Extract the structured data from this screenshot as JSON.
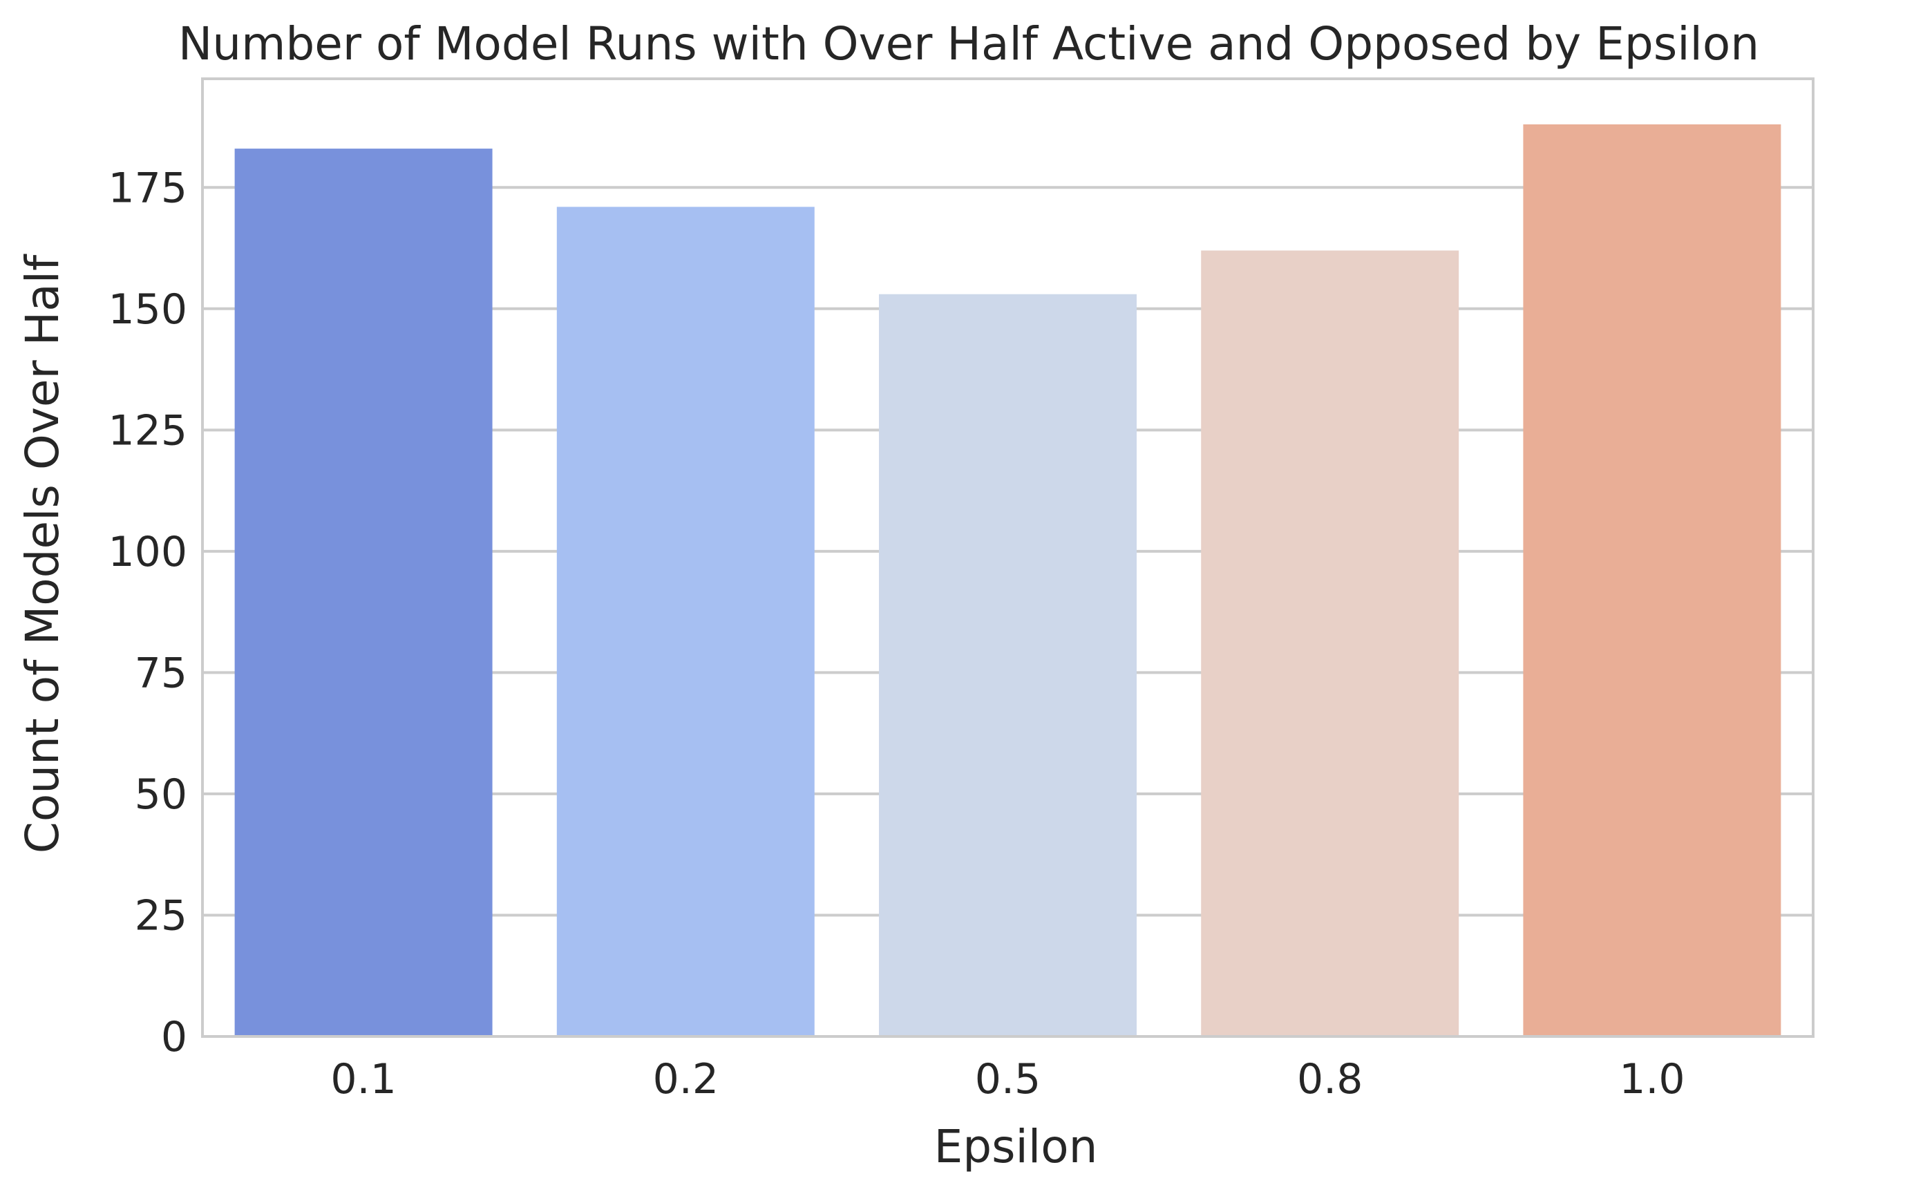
{
  "chart_data": {
    "type": "bar",
    "title": "Number of Model Runs with Over Half Active and Opposed by Epsilon",
    "xlabel": "Epsilon",
    "ylabel": "Count of Models Over Half",
    "categories": [
      "0.1",
      "0.2",
      "0.5",
      "0.8",
      "1.0"
    ],
    "values": [
      183,
      171,
      153,
      162,
      188
    ],
    "colors": [
      "#7891dc",
      "#a6bff2",
      "#cdd8ea",
      "#e8d0c7",
      "#e9ae96"
    ],
    "ylim": [
      0,
      197.4
    ],
    "yticks": [
      0,
      25,
      50,
      75,
      100,
      125,
      150,
      175
    ],
    "grid": true,
    "grid_axis": "y",
    "legend": "none",
    "style": {
      "grid_color": "#cccccc",
      "spine_color": "#cccccc",
      "text_color": "#262626",
      "background": "#ffffff"
    }
  }
}
